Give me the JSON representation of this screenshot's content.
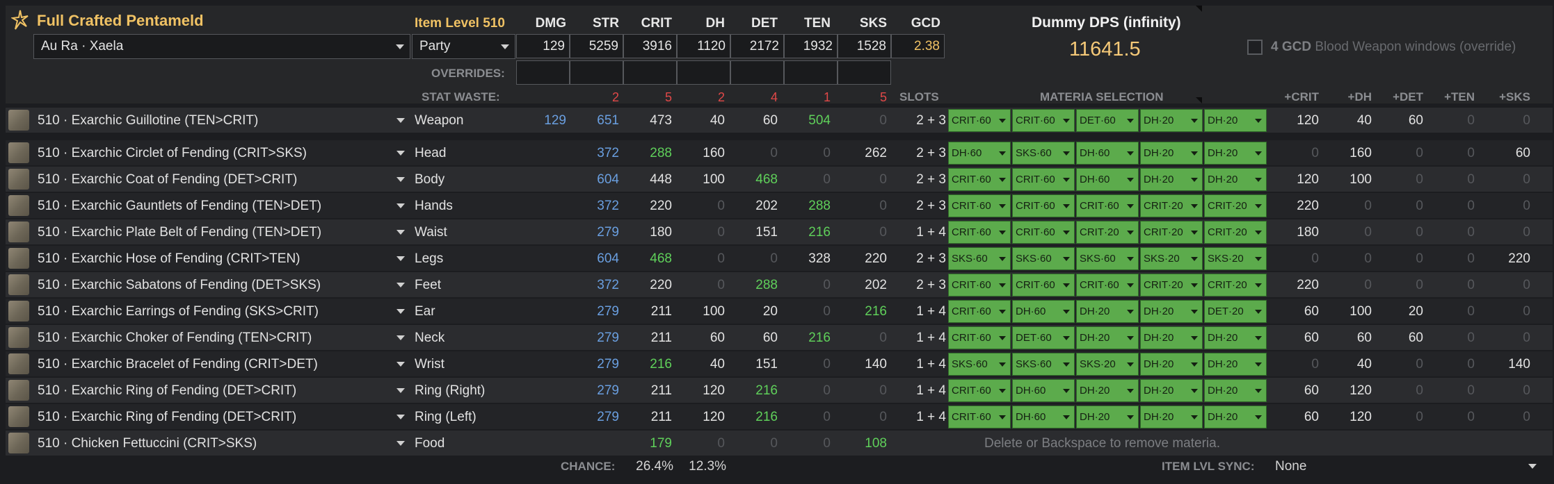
{
  "header": {
    "title": "Full Crafted Pentameld",
    "race": "Au Ra · Xaela",
    "party": "Party",
    "item_level": "Item Level 510",
    "stat_headers": [
      "DMG",
      "STR",
      "CRIT",
      "DH",
      "DET",
      "TEN",
      "SKS",
      "GCD"
    ],
    "stat_values": [
      "129",
      "5259",
      "3916",
      "1120",
      "2172",
      "1932",
      "1528",
      "2.38"
    ],
    "overrides_label": "OVERRIDES:",
    "stat_waste_label": "STAT WASTE:",
    "waste_values": [
      "2",
      "5",
      "2",
      "4",
      "1",
      "5"
    ],
    "slots_label": "SLOTS",
    "materia_label": "MATERIA SELECTION",
    "bonus_headers": [
      "+CRIT",
      "+DH",
      "+DET",
      "+TEN",
      "+SKS"
    ]
  },
  "dps": {
    "title": "Dummy DPS (infinity)",
    "value": "11641.5",
    "checkbox_gcd": "4 GCD",
    "checkbox_label": "Blood Weapon windows (override)"
  },
  "gear": [
    {
      "name": "510 · Exarchic Guillotine (TEN>CRIT)",
      "slot": "Weapon",
      "stats": [
        "129",
        "651",
        "473",
        "40",
        "60",
        "504",
        "0"
      ],
      "colors": [
        "b",
        "b",
        "w",
        "w",
        "w",
        "g",
        "z"
      ],
      "slots": "2 + 3",
      "materia": [
        "CRIT·60",
        "CRIT·60",
        "DET·60",
        "DH·20",
        "DH·20"
      ],
      "bonus": [
        "120",
        "40",
        "60",
        "0",
        "0"
      ]
    },
    {
      "name": "510 · Exarchic Circlet of Fending (CRIT>SKS)",
      "slot": "Head",
      "stats": [
        "",
        "372",
        "288",
        "160",
        "0",
        "0",
        "262"
      ],
      "colors": [
        "z",
        "b",
        "g",
        "w",
        "z",
        "z",
        "w"
      ],
      "slots": "2 + 3",
      "materia": [
        "DH·60",
        "SKS·60",
        "DH·60",
        "DH·20",
        "DH·20"
      ],
      "bonus": [
        "0",
        "160",
        "0",
        "0",
        "60"
      ]
    },
    {
      "name": "510 · Exarchic Coat of Fending (DET>CRIT)",
      "slot": "Body",
      "stats": [
        "",
        "604",
        "448",
        "100",
        "468",
        "0",
        "0"
      ],
      "colors": [
        "z",
        "b",
        "w",
        "w",
        "g",
        "z",
        "z"
      ],
      "slots": "2 + 3",
      "materia": [
        "CRIT·60",
        "CRIT·60",
        "DH·60",
        "DH·20",
        "DH·20"
      ],
      "bonus": [
        "120",
        "100",
        "0",
        "0",
        "0"
      ]
    },
    {
      "name": "510 · Exarchic Gauntlets of Fending (TEN>DET)",
      "slot": "Hands",
      "stats": [
        "",
        "372",
        "220",
        "0",
        "202",
        "288",
        "0"
      ],
      "colors": [
        "z",
        "b",
        "w",
        "z",
        "w",
        "g",
        "z"
      ],
      "slots": "2 + 3",
      "materia": [
        "CRIT·60",
        "CRIT·60",
        "CRIT·60",
        "CRIT·20",
        "CRIT·20"
      ],
      "bonus": [
        "220",
        "0",
        "0",
        "0",
        "0"
      ]
    },
    {
      "name": "510 · Exarchic Plate Belt of Fending (TEN>DET)",
      "slot": "Waist",
      "stats": [
        "",
        "279",
        "180",
        "0",
        "151",
        "216",
        "0"
      ],
      "colors": [
        "z",
        "b",
        "w",
        "z",
        "w",
        "g",
        "z"
      ],
      "slots": "1 + 4",
      "materia": [
        "CRIT·60",
        "CRIT·60",
        "CRIT·20",
        "CRIT·20",
        "CRIT·20"
      ],
      "bonus": [
        "180",
        "0",
        "0",
        "0",
        "0"
      ]
    },
    {
      "name": "510 · Exarchic Hose of Fending (CRIT>TEN)",
      "slot": "Legs",
      "stats": [
        "",
        "604",
        "468",
        "0",
        "0",
        "328",
        "220"
      ],
      "colors": [
        "z",
        "b",
        "g",
        "z",
        "z",
        "w",
        "w"
      ],
      "slots": "2 + 3",
      "materia": [
        "SKS·60",
        "SKS·60",
        "SKS·60",
        "SKS·20",
        "SKS·20"
      ],
      "bonus": [
        "0",
        "0",
        "0",
        "0",
        "220"
      ]
    },
    {
      "name": "510 · Exarchic Sabatons of Fending (DET>SKS)",
      "slot": "Feet",
      "stats": [
        "",
        "372",
        "220",
        "0",
        "288",
        "0",
        "202"
      ],
      "colors": [
        "z",
        "b",
        "w",
        "z",
        "g",
        "z",
        "w"
      ],
      "slots": "2 + 3",
      "materia": [
        "CRIT·60",
        "CRIT·60",
        "CRIT·60",
        "CRIT·20",
        "CRIT·20"
      ],
      "bonus": [
        "220",
        "0",
        "0",
        "0",
        "0"
      ]
    },
    {
      "name": "510 · Exarchic Earrings of Fending (SKS>CRIT)",
      "slot": "Ear",
      "stats": [
        "",
        "279",
        "211",
        "100",
        "20",
        "0",
        "216"
      ],
      "colors": [
        "z",
        "b",
        "w",
        "w",
        "w",
        "z",
        "g"
      ],
      "slots": "1 + 4",
      "materia": [
        "CRIT·60",
        "DH·60",
        "DH·20",
        "DH·20",
        "DET·20"
      ],
      "bonus": [
        "60",
        "100",
        "20",
        "0",
        "0"
      ]
    },
    {
      "name": "510 · Exarchic Choker of Fending (TEN>CRIT)",
      "slot": "Neck",
      "stats": [
        "",
        "279",
        "211",
        "60",
        "60",
        "216",
        "0"
      ],
      "colors": [
        "z",
        "b",
        "w",
        "w",
        "w",
        "g",
        "z"
      ],
      "slots": "1 + 4",
      "materia": [
        "CRIT·60",
        "DET·60",
        "DH·20",
        "DH·20",
        "DH·20"
      ],
      "bonus": [
        "60",
        "60",
        "60",
        "0",
        "0"
      ]
    },
    {
      "name": "510 · Exarchic Bracelet of Fending (CRIT>DET)",
      "slot": "Wrist",
      "stats": [
        "",
        "279",
        "216",
        "40",
        "151",
        "0",
        "140"
      ],
      "colors": [
        "z",
        "b",
        "g",
        "w",
        "w",
        "z",
        "w"
      ],
      "slots": "1 + 4",
      "materia": [
        "SKS·60",
        "SKS·60",
        "SKS·20",
        "DH·20",
        "DH·20"
      ],
      "bonus": [
        "0",
        "40",
        "0",
        "0",
        "140"
      ]
    },
    {
      "name": "510 · Exarchic Ring of Fending (DET>CRIT)",
      "slot": "Ring (Right)",
      "stats": [
        "",
        "279",
        "211",
        "120",
        "216",
        "0",
        "0"
      ],
      "colors": [
        "z",
        "b",
        "w",
        "w",
        "g",
        "z",
        "z"
      ],
      "slots": "1 + 4",
      "materia": [
        "CRIT·60",
        "DH·60",
        "DH·20",
        "DH·20",
        "DH·20"
      ],
      "bonus": [
        "60",
        "120",
        "0",
        "0",
        "0"
      ]
    },
    {
      "name": "510 · Exarchic Ring of Fending (DET>CRIT)",
      "slot": "Ring (Left)",
      "stats": [
        "",
        "279",
        "211",
        "120",
        "216",
        "0",
        "0"
      ],
      "colors": [
        "z",
        "b",
        "w",
        "w",
        "g",
        "z",
        "z"
      ],
      "slots": "1 + 4",
      "materia": [
        "CRIT·60",
        "DH·60",
        "DH·20",
        "DH·20",
        "DH·20"
      ],
      "bonus": [
        "60",
        "120",
        "0",
        "0",
        "0"
      ]
    },
    {
      "name": "510 · Chicken Fettuccini (CRIT>SKS)",
      "slot": "Food",
      "stats": [
        "",
        "",
        "179",
        "0",
        "0",
        "0",
        "108"
      ],
      "colors": [
        "z",
        "z",
        "g",
        "z",
        "z",
        "z",
        "g"
      ],
      "slots": "",
      "materia": [],
      "bonus": []
    }
  ],
  "hint": "Delete or Backspace to remove materia.",
  "footer": {
    "chance_label": "CHANCE:",
    "chance_crit": "26.4%",
    "chance_dh": "12.3%",
    "sync_label": "ITEM LVL SYNC:",
    "sync_value": "None"
  },
  "icons": [
    "star-logo-icon",
    "dropdown-chevron-icon",
    "gear-item-icon",
    "checkbox-icon"
  ],
  "colors": {
    "gold": "#f0c264",
    "blue_stat": "#6a9fe0",
    "green_stat": "#5fd05a",
    "waste_red": "#e04848",
    "materia_green": "#5cab4c",
    "panel": "#262729"
  }
}
